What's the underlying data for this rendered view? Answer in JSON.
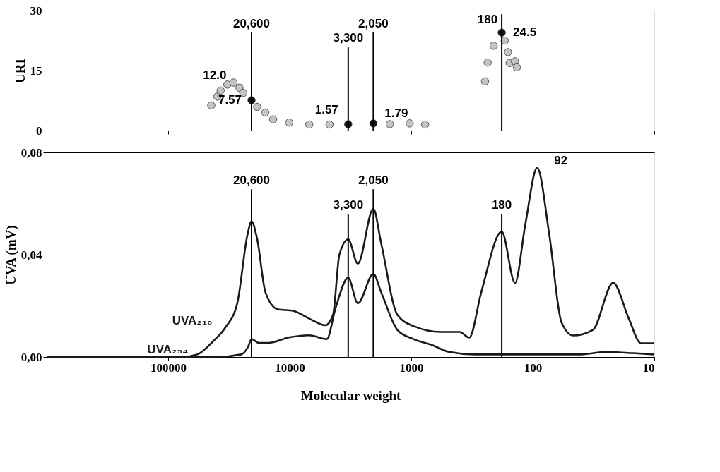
{
  "chart_data": [
    {
      "type": "scatter",
      "ylabel": "URI",
      "xlim": [
        1000000,
        10
      ],
      "xticks": [
        {
          "value": 1000000,
          "label": null
        },
        {
          "value": 100000,
          "label": null
        },
        {
          "value": 10000,
          "label": null
        },
        {
          "value": 1000,
          "label": null
        },
        {
          "value": 100,
          "label": null
        },
        {
          "value": 10,
          "label": null
        }
      ],
      "ylim": [
        0,
        30
      ],
      "yticks": [
        0,
        15,
        30
      ],
      "log": "x",
      "grid": "y",
      "marker": "circle",
      "tick_labels": "y",
      "series": [
        {
          "color": "#c4c4c4",
          "x": [
            44200,
            39400,
            37000,
            32600,
            29000,
            25900,
            24100,
            18500,
            15900,
            13700,
            10100,
            6900,
            4700,
            1500,
            1030,
            770,
            247,
            235,
            210,
            170,
            160,
            155,
            140,
            135
          ],
          "values": [
            6.3,
            8.5,
            10.0,
            11.5,
            12.0,
            10.7,
            9.4,
            5.9,
            4.5,
            2.8,
            2.0,
            1.5,
            1.5,
            1.6,
            1.8,
            1.5,
            12.3,
            17.0,
            21.2,
            22.5,
            19.6,
            16.9,
            17.3,
            15.8
          ]
        },
        {
          "color": "#111111",
          "x": [
            20600,
            3300,
            2050,
            180
          ],
          "values": [
            7.57,
            1.57,
            1.79,
            24.5
          ]
        }
      ],
      "ref_lines": [
        {
          "axis": "x",
          "value": 20600,
          "label": "20,600"
        },
        {
          "axis": "x",
          "value": 3300,
          "label": "3,300"
        },
        {
          "axis": "x",
          "value": 2050,
          "label": "2,050"
        },
        {
          "axis": "x",
          "value": 180,
          "label": "180"
        }
      ],
      "annotations": [
        {
          "text": "12.0",
          "x": 29000,
          "y": 12.0
        },
        {
          "text": "7.57",
          "x": 20600,
          "y": 7.57
        },
        {
          "text": "1.57",
          "x": 3300,
          "y": 1.57
        },
        {
          "text": "1.79",
          "x": 2050,
          "y": 1.79
        },
        {
          "text": "24.5",
          "x": 180,
          "y": 24.5
        }
      ]
    },
    {
      "type": "line",
      "xlabel": "Molecular weight",
      "ylabel": "UVA (mV)",
      "xlim": [
        1000000,
        10
      ],
      "xticks": [
        {
          "value": 1000000,
          "label": null
        },
        100000,
        10000,
        1000,
        100,
        10
      ],
      "ylim": [
        0,
        0.08
      ],
      "yticks": [
        {
          "value": 0,
          "label": "0,00"
        },
        {
          "value": 0.04,
          "label": "0,04"
        },
        {
          "value": 0.08,
          "label": "0,08"
        }
      ],
      "log": "x",
      "grid": "y",
      "line_style": "solid",
      "series": [
        {
          "name": "UVA₂₁₀",
          "color": "#1a1a1a",
          "x": [
            1000000,
            78000,
            57700,
            42600,
            34000,
            27000,
            22300,
            20600,
            18500,
            15850,
            12600,
            9300,
            6900,
            5100,
            4400,
            3900,
            3300,
            2750,
            2050,
            1770,
            1300,
            960,
            570,
            400,
            333,
            265,
            180,
            140,
            115,
            92,
            73,
            58,
            46.5,
            32,
            21.8,
            16.2,
            12.9,
            10
          ],
          "values": [
            0,
            0,
            0.001,
            0.0062,
            0.0114,
            0.021,
            0.0476,
            0.053,
            0.046,
            0.0254,
            0.0187,
            0.018,
            0.015,
            0.0124,
            0.0165,
            0.04,
            0.046,
            0.0365,
            0.058,
            0.0446,
            0.0165,
            0.0121,
            0.0098,
            0.0098,
            0.0076,
            0.0254,
            0.049,
            0.029,
            0.052,
            0.074,
            0.0476,
            0.0135,
            0.0084,
            0.0106,
            0.029,
            0.015,
            0.0054,
            0.0054
          ]
        },
        {
          "name": "UVA₂₅₄",
          "color": "#1a1a1a",
          "x": [
            1000000,
            40000,
            25000,
            22000,
            20600,
            18000,
            15000,
            10000,
            6900,
            4950,
            4200,
            3300,
            2750,
            2050,
            1770,
            1300,
            960,
            660,
            490,
            300,
            100,
            40,
            25,
            15,
            10
          ],
          "values": [
            0,
            0,
            0.001,
            0.004,
            0.007,
            0.0055,
            0.0055,
            0.0077,
            0.0085,
            0.007,
            0.019,
            0.031,
            0.021,
            0.0325,
            0.0254,
            0.0106,
            0.007,
            0.0045,
            0.002,
            0.001,
            0.001,
            0.001,
            0.002,
            0.0015,
            0.001
          ]
        }
      ],
      "ref_lines": [
        {
          "axis": "x",
          "value": 20600,
          "label": "20,600"
        },
        {
          "axis": "x",
          "value": 3300,
          "label": "3,300"
        },
        {
          "axis": "x",
          "value": 2050,
          "label": "2,050"
        },
        {
          "axis": "x",
          "value": 180,
          "label": "180"
        }
      ],
      "annotations": [
        {
          "text": "92",
          "x": 92,
          "y": 0.074
        }
      ]
    }
  ]
}
